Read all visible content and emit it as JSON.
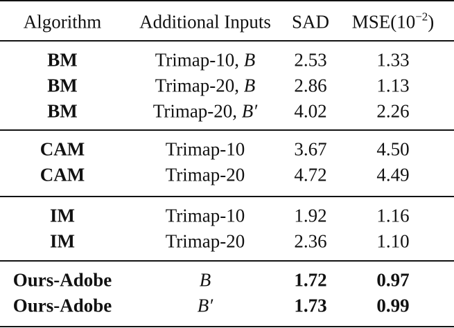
{
  "table": {
    "header": [
      "Algorithm",
      "Additional Inputs",
      "SAD",
      {
        "base": "MSE(10",
        "sup": "−2",
        "close": ")"
      }
    ],
    "groups": [
      [
        {
          "algorithm": "BM",
          "inputs": {
            "text": "Trimap-10, ",
            "math": "B"
          },
          "sad": "2.53",
          "mse": "1.33"
        },
        {
          "algorithm": "BM",
          "inputs": {
            "text": "Trimap-20, ",
            "math": "B"
          },
          "sad": "2.86",
          "mse": "1.13"
        },
        {
          "algorithm": "BM",
          "inputs": {
            "text": "Trimap-20, ",
            "math": "B′"
          },
          "sad": "4.02",
          "mse": "2.26"
        }
      ],
      [
        {
          "algorithm": "CAM",
          "inputs": {
            "text": "Trimap-10"
          },
          "sad": "3.67",
          "mse": "4.50"
        },
        {
          "algorithm": "CAM",
          "inputs": {
            "text": "Trimap-20"
          },
          "sad": "4.72",
          "mse": "4.49"
        }
      ],
      [
        {
          "algorithm": "IM",
          "inputs": {
            "text": "Trimap-10"
          },
          "sad": "1.92",
          "mse": "1.16"
        },
        {
          "algorithm": "IM",
          "inputs": {
            "text": "Trimap-20"
          },
          "sad": "2.36",
          "mse": "1.10"
        }
      ],
      [
        {
          "algorithm": "Ours-Adobe",
          "inputs": {
            "math": "B"
          },
          "sad": "1.72",
          "mse": "0.97"
        },
        {
          "algorithm": "Ours-Adobe",
          "inputs": {
            "math": "B′"
          },
          "sad": "1.73",
          "mse": "0.99"
        }
      ]
    ]
  }
}
